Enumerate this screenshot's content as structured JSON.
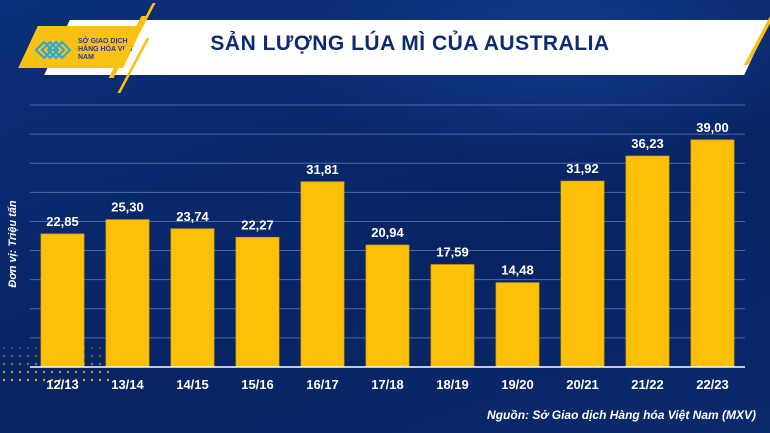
{
  "logo": {
    "text": "SỞ GIAO DỊCH HÀNG HÓA VIỆT NAM"
  },
  "chart_data": {
    "type": "bar",
    "title": "SẢN LƯỢNG LÚA MÌ CỦA AUSTRALIA",
    "ylabel": "Đơn vị: Triệu tấn",
    "xlabel": "",
    "categories": [
      "12/13",
      "13/14",
      "14/15",
      "15/16",
      "16/17",
      "17/18",
      "18/19",
      "19/20",
      "20/21",
      "21/22",
      "22/23"
    ],
    "values": [
      22.85,
      25.3,
      23.74,
      22.27,
      31.81,
      20.94,
      17.59,
      14.48,
      31.92,
      36.23,
      39.0
    ],
    "data_labels": [
      "22,85",
      "25,30",
      "23,74",
      "22,27",
      "31,81",
      "20,94",
      "17,59",
      "14,48",
      "31,92",
      "36,23",
      "39,00"
    ],
    "ylim": [
      0,
      45
    ],
    "grid": true,
    "bar_color": "#fec006"
  },
  "source": "Nguồn: Sở Giao dịch Hàng hóa Việt Nam (MXV)"
}
